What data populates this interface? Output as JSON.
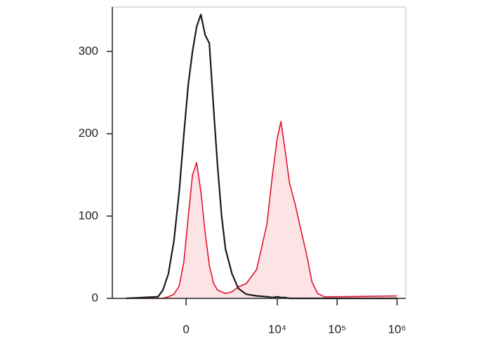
{
  "chart_data": {
    "type": "histogram-overlay",
    "xscale": "arcsinh",
    "xscale_cofactor": 600,
    "xlim": [
      -5100,
      1400000
    ],
    "ylim": [
      0,
      354
    ],
    "xticks": [
      0,
      {
        "value": 10000,
        "label": "10⁴"
      },
      {
        "value": 100000,
        "label": "10⁵"
      },
      {
        "value": 1000000,
        "label": "10⁶"
      }
    ],
    "yticks": [
      0,
      100,
      200,
      300
    ],
    "x": [
      -3000,
      -780,
      -610,
      -440,
      -290,
      -160,
      -50,
      50,
      150,
      250,
      360,
      480,
      610,
      760,
      920,
      1100,
      1300,
      1700,
      2200,
      3000,
      4500,
      6700,
      8300,
      10000,
      11500,
      13500,
      16000,
      19800,
      24500,
      30500,
      38000,
      47000,
      61500,
      100000,
      1000000
    ],
    "series": [
      {
        "color": "#e3112f",
        "fill": "#fce4e6",
        "values": [
          0,
          0,
          0,
          2,
          5,
          15,
          45,
          100,
          150,
          165,
          130,
          80,
          40,
          18,
          10,
          8,
          6,
          8,
          14,
          18,
          35,
          90,
          150,
          195,
          215,
          180,
          140,
          115,
          85,
          55,
          20,
          6,
          2,
          2,
          3
        ]
      },
      {
        "color": "#1a1a1a",
        "values": [
          0,
          2,
          10,
          30,
          70,
          130,
          200,
          260,
          300,
          330,
          345,
          320,
          310,
          230,
          160,
          100,
          60,
          30,
          12,
          5,
          3,
          2,
          1,
          2,
          1,
          1,
          0,
          0,
          0,
          0,
          0,
          0,
          0,
          0,
          0
        ]
      }
    ]
  }
}
